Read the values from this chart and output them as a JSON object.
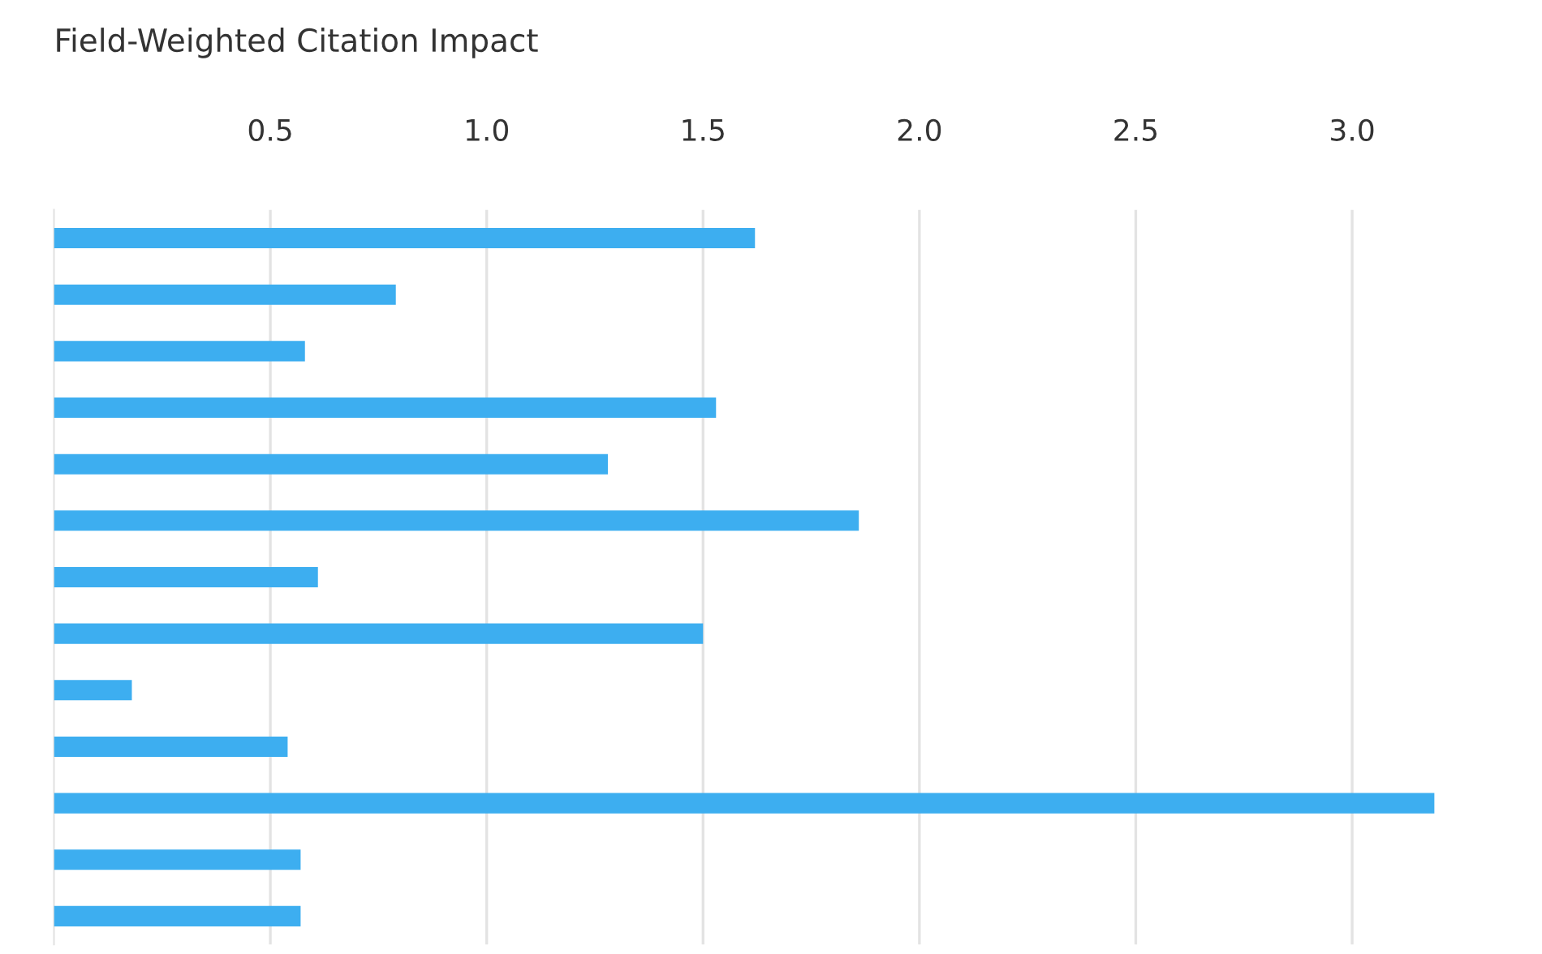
{
  "chart_data": {
    "type": "bar",
    "orientation": "horizontal",
    "title": "Field-Weighted Citation Impact",
    "categories": [
      null,
      null,
      null,
      null,
      null,
      null,
      null,
      null,
      null,
      null,
      null,
      null,
      null
    ],
    "values": [
      1.62,
      0.79,
      0.58,
      1.53,
      1.28,
      1.86,
      0.61,
      1.5,
      0.18,
      0.54,
      3.19,
      0.57,
      0.57
    ],
    "color": "#3daef0",
    "xlim": [
      0,
      3.2
    ],
    "xticks": [
      0.5,
      {
        "value": 1,
        "label": "1.0"
      },
      1.5,
      {
        "value": 2,
        "label": "2.0"
      },
      2.5,
      {
        "value": 3,
        "label": "3.0"
      }
    ],
    "grid": "x",
    "tick_labels": "x"
  }
}
